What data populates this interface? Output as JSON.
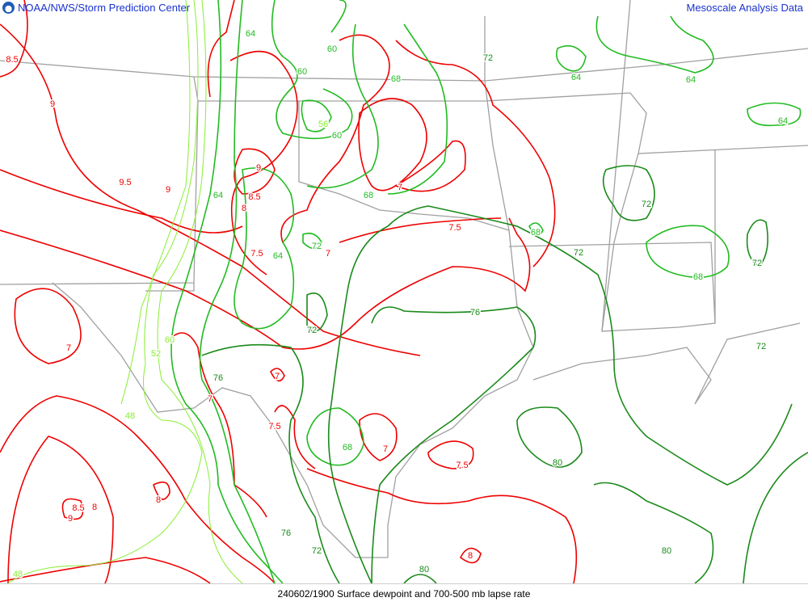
{
  "header": {
    "left_title": "NOAA/NWS/Storm Prediction Center",
    "right_title": "Mesoscale Analysis Data"
  },
  "footer": {
    "caption": "240602/1900 Surface dewpoint and 700-500 mb lapse rate"
  },
  "colors": {
    "lapse_rate": "#ee0000",
    "dewpoint_dark": "#1a8a1a",
    "dewpoint_mid": "#22bb22",
    "dewpoint_light": "#88ee33",
    "borders": "#a0a0a0",
    "header_text": "#1a33cc"
  },
  "lapse_rate_labels": [
    "8.5",
    "9",
    "9.5",
    "9",
    "9",
    "8.5",
    "8",
    "7.5",
    "7",
    "7",
    "7.5",
    "7",
    "7",
    "7.5",
    "7",
    "7.5",
    "8",
    "8.5",
    "8",
    "9",
    "8",
    "7"
  ],
  "dewpoint_labels": [
    "64",
    "60",
    "60",
    "68",
    "72",
    "64",
    "64",
    "64",
    "56",
    "60",
    "68",
    "64",
    "72",
    "64",
    "72",
    "68",
    "72",
    "72",
    "68",
    "76",
    "72",
    "60",
    "52",
    "76",
    "48",
    "68",
    "80",
    "76",
    "72",
    "80",
    "80",
    "48",
    "72"
  ]
}
